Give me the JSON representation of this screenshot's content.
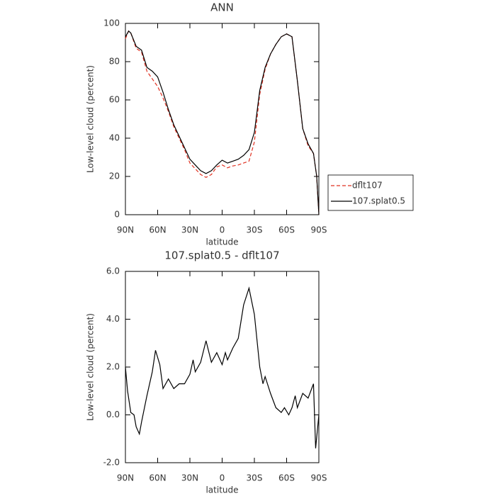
{
  "chart_data": [
    {
      "type": "line",
      "title": "ANN",
      "xlabel": "latitude",
      "ylabel": "Low-level cloud (percent)",
      "x": [
        90,
        87,
        85,
        80,
        75,
        70,
        65,
        60,
        55,
        50,
        45,
        40,
        35,
        30,
        25,
        20,
        15,
        10,
        5,
        0,
        -5,
        -10,
        -15,
        -20,
        -25,
        -30,
        -35,
        -40,
        -45,
        -50,
        -55,
        -60,
        -65,
        -70,
        -75,
        -80,
        -85,
        -88,
        -90
      ],
      "series": [
        {
          "name": "dflt107",
          "color": "#e03020",
          "linestyle": "dashed",
          "values": [
            92,
            96,
            95,
            87,
            85,
            75,
            71,
            67,
            61,
            54,
            46,
            40,
            34,
            27,
            24,
            21,
            19.5,
            21,
            25,
            26,
            24.5,
            25.5,
            26,
            27,
            28,
            38,
            63,
            76,
            84,
            89,
            93,
            94.5,
            93,
            70,
            45,
            36,
            32,
            20,
            0
          ]
        },
        {
          "name": "107.splat0.5",
          "color": "#000000",
          "linestyle": "solid",
          "values": [
            93,
            96,
            95,
            88,
            86,
            77,
            75,
            72,
            64,
            55,
            47,
            41,
            35,
            29,
            26,
            23,
            21.5,
            23,
            26,
            28.5,
            27,
            28,
            29,
            31,
            34,
            43,
            65,
            77,
            84,
            89,
            93,
            94.5,
            93,
            70,
            45,
            37,
            32,
            20,
            0
          ]
        }
      ],
      "xlim": [
        90,
        -90
      ],
      "xticks": [
        {
          "value": 90,
          "label": "90N"
        },
        {
          "value": 60,
          "label": "60N"
        },
        {
          "value": 30,
          "label": "30N"
        },
        0,
        {
          "value": -30,
          "label": "30S"
        },
        {
          "value": -60,
          "label": "60S"
        },
        {
          "value": -90,
          "label": "90S"
        }
      ],
      "ylim": [
        0,
        100
      ],
      "yticks": [
        0,
        20,
        40,
        60,
        80,
        100
      ],
      "legend": "right"
    },
    {
      "type": "line",
      "title": "107.splat0.5 - dflt107",
      "xlabel": "latitude",
      "ylabel": "Low-level cloud (percent)",
      "x": [
        90,
        88,
        85,
        82,
        80,
        77,
        75,
        70,
        65,
        62,
        58,
        55,
        50,
        45,
        40,
        35,
        30,
        27,
        25,
        20,
        15,
        10,
        5,
        0,
        -3,
        -5,
        -10,
        -15,
        -20,
        -25,
        -30,
        -35,
        -38,
        -40,
        -45,
        -50,
        -55,
        -58,
        -62,
        -65,
        -68,
        -70,
        -75,
        -80,
        -85,
        -87,
        -90
      ],
      "series": [
        {
          "color": "#000000",
          "linestyle": "solid",
          "values": [
            2.0,
            1.0,
            0.1,
            0.0,
            -0.5,
            -0.8,
            -0.3,
            0.8,
            1.8,
            2.7,
            2.1,
            1.1,
            1.5,
            1.1,
            1.3,
            1.3,
            1.7,
            2.3,
            1.8,
            2.2,
            3.1,
            2.2,
            2.6,
            2.1,
            2.6,
            2.3,
            2.8,
            3.2,
            4.6,
            5.3,
            4.2,
            2.0,
            1.3,
            1.6,
            0.9,
            0.3,
            0.1,
            0.3,
            0.0,
            0.3,
            0.8,
            0.3,
            0.9,
            0.7,
            1.3,
            -1.4,
            0.0
          ]
        }
      ],
      "xlim": [
        90,
        -90
      ],
      "xticks": [
        {
          "value": 90,
          "label": "90N"
        },
        {
          "value": 60,
          "label": "60N"
        },
        {
          "value": 30,
          "label": "30N"
        },
        0,
        {
          "value": -30,
          "label": "30S"
        },
        {
          "value": -60,
          "label": "60S"
        },
        {
          "value": -90,
          "label": "90S"
        }
      ],
      "ylim": [
        -2,
        6
      ],
      "yticks": [
        {
          "value": -2,
          "label": "-2.0"
        },
        {
          "value": 0,
          "label": "0.0"
        },
        {
          "value": 2,
          "label": "2.0"
        },
        {
          "value": 4,
          "label": "4.0"
        },
        {
          "value": 6,
          "label": "6.0"
        }
      ]
    }
  ]
}
